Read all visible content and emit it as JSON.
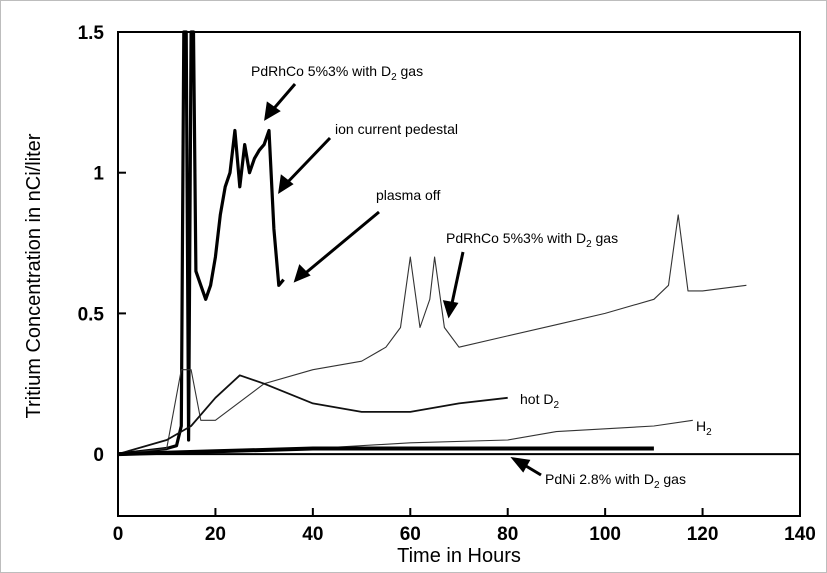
{
  "chart_data": {
    "type": "line",
    "title": "",
    "xlabel": "Time in Hours",
    "ylabel": "Tritium Concentration in nCi/liter",
    "xlim": [
      0,
      140
    ],
    "ylim": [
      -0.22,
      1.5
    ],
    "x_ticks": [
      0,
      20,
      40,
      60,
      80,
      100,
      120,
      140
    ],
    "x_tick_labels": [
      "0",
      "20",
      "40",
      "60",
      "80",
      "100",
      "120",
      "140"
    ],
    "y_ticks": [
      0,
      0.5,
      1,
      1.5
    ],
    "y_tick_labels": [
      "0",
      "0.5",
      "1",
      "1.5"
    ],
    "grid": false,
    "legend": "none",
    "series": [
      {
        "label": "PdRhCo 5%3% with D2 gas",
        "style": "solid-thick",
        "x": [
          0,
          5,
          10,
          12,
          13,
          13.5,
          14,
          14.5,
          15,
          15.5,
          16,
          17,
          18,
          19,
          20,
          21,
          22,
          23,
          24,
          25,
          26,
          27,
          28,
          29,
          30,
          31,
          32,
          33,
          34
        ],
        "y": [
          0,
          0.01,
          0.02,
          0.03,
          0.1,
          1.5,
          1.5,
          0.05,
          1.5,
          1.5,
          0.65,
          0.6,
          0.55,
          0.6,
          0.7,
          0.85,
          0.95,
          1.0,
          1.15,
          0.95,
          1.1,
          1.0,
          1.05,
          1.08,
          1.1,
          1.15,
          0.8,
          0.6,
          0.62
        ]
      },
      {
        "label": "PdRhCo 5%3% with D2 gas",
        "style": "thin",
        "x": [
          0,
          10,
          13,
          15,
          17,
          20,
          30,
          40,
          50,
          55,
          58,
          60,
          62,
          64,
          65,
          67,
          70,
          80,
          90,
          100,
          110,
          113,
          115,
          117,
          120,
          129
        ],
        "y": [
          0,
          0.02,
          0.3,
          0.3,
          0.12,
          0.12,
          0.25,
          0.3,
          0.33,
          0.38,
          0.45,
          0.7,
          0.45,
          0.55,
          0.7,
          0.45,
          0.38,
          0.42,
          0.46,
          0.5,
          0.55,
          0.6,
          0.85,
          0.58,
          0.58,
          0.6
        ]
      },
      {
        "label": "hot D2",
        "style": "medium",
        "x": [
          0,
          10,
          15,
          20,
          25,
          30,
          40,
          50,
          60,
          70,
          80
        ],
        "y": [
          0,
          0.05,
          0.1,
          0.2,
          0.28,
          0.25,
          0.18,
          0.15,
          0.15,
          0.18,
          0.2
        ]
      },
      {
        "label": "H2",
        "style": "thin",
        "x": [
          0,
          20,
          40,
          60,
          80,
          90,
          100,
          110,
          118
        ],
        "y": [
          0,
          0.01,
          0.02,
          0.04,
          0.05,
          0.08,
          0.09,
          0.1,
          0.12
        ]
      },
      {
        "label": "PdNi 2.8% with D2 gas",
        "style": "thick",
        "x": [
          0,
          20,
          40,
          60,
          80,
          100,
          110
        ],
        "y": [
          0,
          0.01,
          0.02,
          0.02,
          0.02,
          0.02,
          0.02
        ]
      }
    ],
    "annotations": [
      {
        "text": "PdRhCo 5%3% with D",
        "sub": "2",
        "tail": " gas"
      },
      {
        "text": "ion current pedestal"
      },
      {
        "text": "plasma off"
      },
      {
        "text": "PdRhCo 5%3% with D",
        "sub": "2",
        "tail": " gas"
      },
      {
        "text": "hot D",
        "sub": "2"
      },
      {
        "text": "H",
        "sub": "2"
      },
      {
        "text": "PdNi 2.8% with D",
        "sub": "2",
        "tail": " gas"
      }
    ]
  }
}
